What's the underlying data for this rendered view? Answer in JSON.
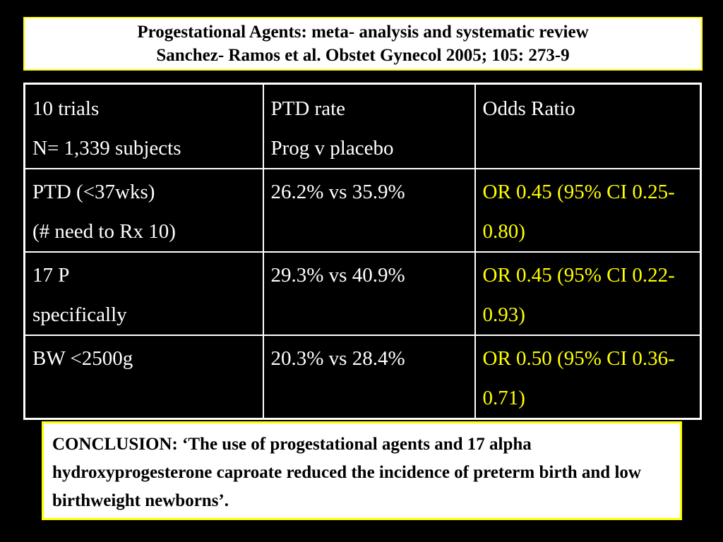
{
  "title": {
    "line1": "Progestational Agents: meta- analysis and systematic review",
    "line2": "Sanchez- Ramos et al. Obstet Gynecol 2005; 105: 273-9"
  },
  "table": {
    "header": [
      [
        "10 trials",
        "N= 1,339 subjects"
      ],
      [
        "PTD rate",
        "Prog v placebo"
      ],
      [
        "Odds Ratio"
      ]
    ],
    "rows": [
      {
        "label": [
          "PTD (<37wks)",
          "(# need to Rx 10)"
        ],
        "rate": "26.2% vs 35.9%",
        "or": "OR 0.45 (95% CI 0.25-0.80)"
      },
      {
        "label": [
          "17 P",
          "specifically"
        ],
        "rate": "29.3% vs 40.9%",
        "or": "OR 0.45 (95% CI 0.22-0.93)"
      },
      {
        "label": [
          "BW <2500g"
        ],
        "rate": "20.3% vs 28.4%",
        "or": "OR 0.50 (95% CI 0.36-0.71)"
      }
    ]
  },
  "conclusion": "CONCLUSION: ‘The use of progestational agents and 17 alpha hydroxyprogesterone caproate reduced the incidence of preterm birth and low birthweight newborns’.",
  "colors": {
    "background": "#000000",
    "highlight": "#ffff00",
    "text": "#ffffff"
  }
}
